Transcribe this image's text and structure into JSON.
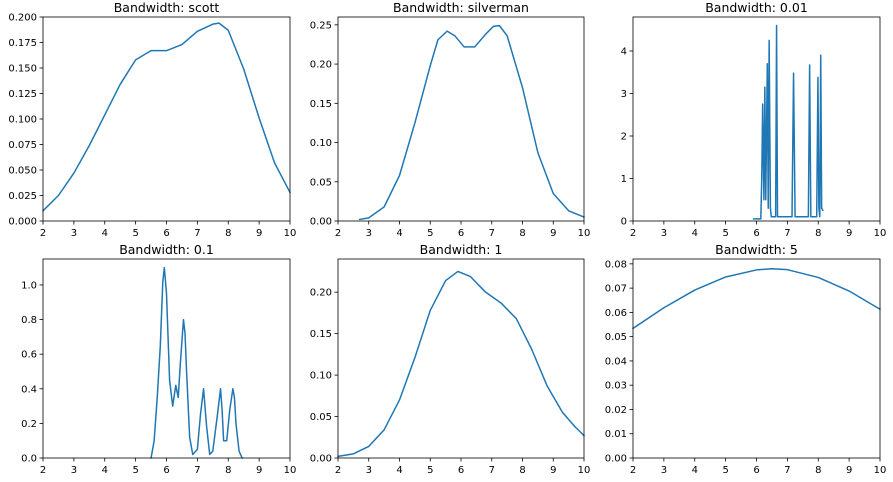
{
  "colors": {
    "line": "#1f77b4",
    "axis": "#000000",
    "background": "#ffffff"
  },
  "chart_data": [
    {
      "type": "line",
      "title": "Bandwidth: scott",
      "xlim": [
        2,
        10
      ],
      "ylim": [
        0,
        0.2
      ],
      "xticks": [
        2,
        3,
        4,
        5,
        6,
        7,
        8,
        9,
        10
      ],
      "yticks": [
        0,
        0.025,
        0.05,
        0.075,
        0.1,
        0.125,
        0.15,
        0.175,
        0.2
      ],
      "ytick_labels": [
        "0.000",
        "0.025",
        "0.050",
        "0.075",
        "0.100",
        "0.125",
        "0.150",
        "0.175",
        "0.200"
      ],
      "series": [
        {
          "x": [
            2,
            2.5,
            3,
            3.5,
            4,
            4.5,
            5,
            5.5,
            6,
            6.5,
            7,
            7.5,
            7.7,
            8,
            8.5,
            9,
            9.5,
            10
          ],
          "y": [
            0.01,
            0.025,
            0.047,
            0.074,
            0.104,
            0.134,
            0.158,
            0.167,
            0.167,
            0.173,
            0.186,
            0.193,
            0.194,
            0.187,
            0.149,
            0.101,
            0.057,
            0.028
          ]
        }
      ]
    },
    {
      "type": "line",
      "title": "Bandwidth: silverman",
      "xlim": [
        2,
        10
      ],
      "ylim": [
        0,
        0.26
      ],
      "xticks": [
        2,
        3,
        4,
        5,
        6,
        7,
        8,
        9,
        10
      ],
      "yticks": [
        0,
        0.05,
        0.1,
        0.15,
        0.2,
        0.25
      ],
      "ytick_labels": [
        "0.00",
        "0.05",
        "0.10",
        "0.15",
        "0.20",
        "0.25"
      ],
      "series": [
        {
          "x": [
            2.7,
            3,
            3.5,
            4,
            4.5,
            5,
            5.25,
            5.55,
            5.8,
            6.1,
            6.45,
            6.8,
            7.05,
            7.25,
            7.5,
            8,
            8.5,
            9,
            9.5,
            10
          ],
          "y": [
            0.002,
            0.004,
            0.018,
            0.058,
            0.125,
            0.198,
            0.231,
            0.242,
            0.236,
            0.222,
            0.222,
            0.238,
            0.248,
            0.249,
            0.236,
            0.17,
            0.087,
            0.035,
            0.013,
            0.005
          ]
        }
      ]
    },
    {
      "type": "line",
      "title": "Bandwidth: 0.01",
      "xlim": [
        2,
        10
      ],
      "ylim": [
        0,
        4.8
      ],
      "xticks": [
        2,
        3,
        4,
        5,
        6,
        7,
        8,
        9,
        10
      ],
      "yticks": [
        0,
        1,
        2,
        3,
        4
      ],
      "ytick_labels": [
        "0",
        "1",
        "2",
        "3",
        "4"
      ],
      "series": [
        {
          "x": [
            5.9,
            6.0,
            6.05,
            6.1,
            6.14,
            6.17,
            6.2,
            6.24,
            6.27,
            6.3,
            6.35,
            6.38,
            6.41,
            6.45,
            6.48,
            6.51,
            6.55,
            6.62,
            6.65,
            6.68,
            6.72,
            6.8,
            7.0,
            7.15,
            7.2,
            7.25,
            7.5,
            7.68,
            7.72,
            7.76,
            7.8,
            7.95,
            7.99,
            8.02,
            8.05,
            8.08,
            8.11,
            8.15
          ],
          "y": [
            0.05,
            0.05,
            0.05,
            0.05,
            0.05,
            1.0,
            2.75,
            0.5,
            3.15,
            0.5,
            3.7,
            0.3,
            4.25,
            0.3,
            0.1,
            0.1,
            0.1,
            0.1,
            4.6,
            0.1,
            0.1,
            0.1,
            0.1,
            0.1,
            3.48,
            0.1,
            0.1,
            0.1,
            3.67,
            0.1,
            0.1,
            0.1,
            3.38,
            0.3,
            0.1,
            3.9,
            0.3,
            0.25
          ]
        }
      ]
    },
    {
      "type": "line",
      "title": "Bandwidth: 0.1",
      "xlim": [
        2,
        10
      ],
      "ylim": [
        0,
        1.15
      ],
      "xticks": [
        2,
        3,
        4,
        5,
        6,
        7,
        8,
        9,
        10
      ],
      "yticks": [
        0,
        0.2,
        0.4,
        0.6,
        0.8,
        1.0
      ],
      "ytick_labels": [
        "0.0",
        "0.2",
        "0.4",
        "0.6",
        "0.8",
        "1.0"
      ],
      "series": [
        {
          "x": [
            5.5,
            5.6,
            5.7,
            5.8,
            5.88,
            5.93,
            6.0,
            6.1,
            6.2,
            6.3,
            6.38,
            6.45,
            6.55,
            6.6,
            6.65,
            6.75,
            6.85,
            7.0,
            7.1,
            7.2,
            7.3,
            7.4,
            7.5,
            7.65,
            7.75,
            7.8,
            7.85,
            7.95,
            8.05,
            8.15,
            8.2,
            8.25,
            8.35,
            8.45
          ],
          "y": [
            0.0,
            0.1,
            0.35,
            0.65,
            1.02,
            1.1,
            0.95,
            0.45,
            0.3,
            0.42,
            0.35,
            0.55,
            0.8,
            0.72,
            0.5,
            0.12,
            0.02,
            0.05,
            0.25,
            0.4,
            0.18,
            0.02,
            0.04,
            0.25,
            0.4,
            0.28,
            0.1,
            0.1,
            0.28,
            0.4,
            0.35,
            0.2,
            0.04,
            0.0
          ]
        }
      ]
    },
    {
      "type": "line",
      "title": "Bandwidth: 1",
      "xlim": [
        2,
        10
      ],
      "ylim": [
        0,
        0.24
      ],
      "xticks": [
        2,
        3,
        4,
        5,
        6,
        7,
        8,
        9,
        10
      ],
      "yticks": [
        0,
        0.05,
        0.1,
        0.15,
        0.2
      ],
      "ytick_labels": [
        "0.00",
        "0.05",
        "0.10",
        "0.15",
        "0.20"
      ],
      "series": [
        {
          "x": [
            2,
            2.5,
            3,
            3.5,
            4,
            4.5,
            5,
            5.5,
            5.9,
            6.3,
            6.8,
            7.3,
            7.8,
            8.3,
            8.8,
            9.3,
            9.7,
            10
          ],
          "y": [
            0.002,
            0.005,
            0.014,
            0.034,
            0.07,
            0.121,
            0.178,
            0.214,
            0.225,
            0.219,
            0.2,
            0.187,
            0.168,
            0.131,
            0.087,
            0.055,
            0.038,
            0.027
          ]
        }
      ]
    },
    {
      "type": "line",
      "title": "Bandwidth: 5",
      "xlim": [
        2,
        10
      ],
      "ylim": [
        0,
        0.082
      ],
      "xticks": [
        2,
        3,
        4,
        5,
        6,
        7,
        8,
        9,
        10
      ],
      "yticks": [
        0,
        0.01,
        0.02,
        0.03,
        0.04,
        0.05,
        0.06,
        0.07,
        0.08
      ],
      "ytick_labels": [
        "0.00",
        "0.01",
        "0.02",
        "0.03",
        "0.04",
        "0.05",
        "0.06",
        "0.07",
        "0.08"
      ],
      "series": [
        {
          "x": [
            2,
            3,
            4,
            5,
            6,
            6.5,
            7,
            8,
            9,
            10
          ],
          "y": [
            0.0534,
            0.0619,
            0.0692,
            0.0746,
            0.0775,
            0.078,
            0.0776,
            0.0744,
            0.0688,
            0.0613
          ]
        }
      ]
    }
  ]
}
